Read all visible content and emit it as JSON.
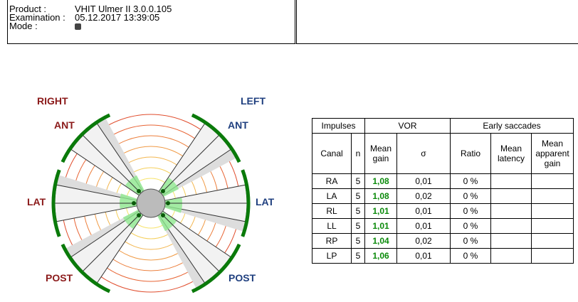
{
  "header": {
    "product_label": "Product :",
    "product_value": "VHIT Ulmer II 3.0.0.105",
    "examination_label": "Examination :",
    "examination_value": "05.12.2017 13:39:05",
    "mode_label": "Mode :"
  },
  "diagram": {
    "right": "RIGHT",
    "left": "LEFT",
    "right_ant": "ANT",
    "left_ant": "ANT",
    "right_lat": "LAT",
    "left_lat": "LAT",
    "right_post": "POST",
    "left_post": "POST"
  },
  "table": {
    "groups": [
      "Impulses",
      "VOR",
      "Early saccades"
    ],
    "columns": [
      "Canal",
      "n",
      "Mean gain",
      "σ",
      "Ratio",
      "Mean latency",
      "Mean apparent gain"
    ],
    "rows": [
      [
        "RA",
        "5",
        "1,08",
        "0,01",
        "0 %"
      ],
      [
        "LA",
        "5",
        "1,08",
        "0,02",
        "0 %"
      ],
      [
        "RL",
        "5",
        "1,01",
        "0,01",
        "0 %"
      ],
      [
        "LL",
        "5",
        "1,01",
        "0,01",
        "0 %"
      ],
      [
        "RP",
        "5",
        "1,04",
        "0,02",
        "0 %"
      ],
      [
        "LP",
        "5",
        "1,06",
        "0,01",
        "0 %"
      ]
    ]
  }
}
